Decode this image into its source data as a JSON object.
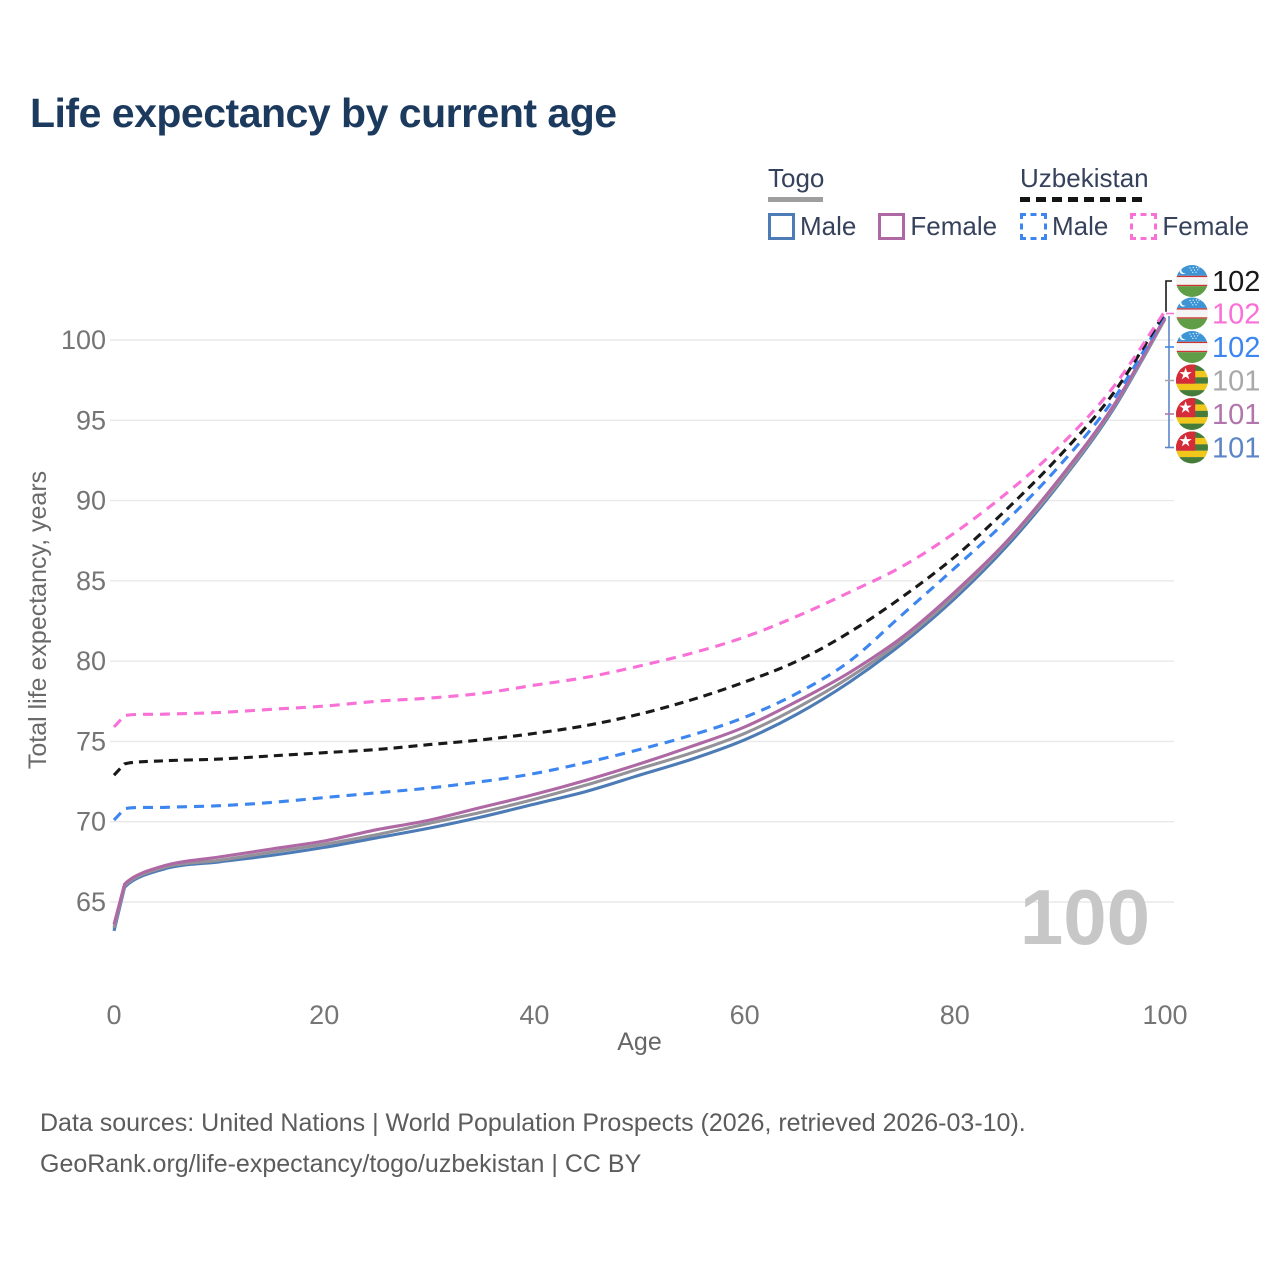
{
  "page": {
    "title": "Life expectancy by current age"
  },
  "legend": {
    "groups": [
      {
        "title": "Togo",
        "line_style": "solid",
        "underline_color": "#9e9e9e",
        "items": [
          {
            "label": "Male",
            "color": "#4d7bb5"
          },
          {
            "label": "Female",
            "color": "#ae68a4"
          }
        ]
      },
      {
        "title": "Uzbekistan",
        "line_style": "dashed",
        "underline_color": "#141414",
        "items": [
          {
            "label": "Male",
            "color": "#3d86f0"
          },
          {
            "label": "Female",
            "color": "#f970d7"
          }
        ]
      }
    ]
  },
  "chart_data": {
    "type": "line",
    "title": "Life expectancy by current age",
    "xlabel": "Age",
    "ylabel": "Total life expectancy, years",
    "x_ticks": [
      0,
      20,
      40,
      60,
      80,
      100
    ],
    "y_ticks": [
      65,
      70,
      75,
      80,
      85,
      90,
      95,
      100
    ],
    "xlim": [
      0,
      100
    ],
    "ylim": [
      63,
      103
    ],
    "grid": true,
    "legend_position": "top-right",
    "watermark": "100",
    "ages": [
      0,
      1,
      5,
      10,
      15,
      20,
      25,
      30,
      35,
      40,
      45,
      50,
      55,
      60,
      65,
      70,
      75,
      80,
      85,
      90,
      95,
      100
    ],
    "series": [
      {
        "id": "togo-male",
        "name": "Togo Male",
        "country": "Togo",
        "sex": "Male",
        "line": "solid",
        "color": "#4d7bb5",
        "values": [
          63.2,
          65.9,
          67.1,
          67.5,
          67.9,
          68.4,
          69.0,
          69.6,
          70.3,
          71.1,
          71.9,
          72.9,
          73.9,
          75.1,
          76.7,
          78.7,
          81.1,
          83.9,
          87.2,
          91.1,
          95.6,
          101.3
        ]
      },
      {
        "id": "togo-total",
        "name": "Togo Total",
        "country": "Togo",
        "sex": "Total",
        "line": "solid",
        "color": "#949298",
        "values": [
          63.4,
          66.0,
          67.2,
          67.6,
          68.1,
          68.6,
          69.2,
          69.9,
          70.6,
          71.4,
          72.3,
          73.3,
          74.3,
          75.5,
          77.1,
          79.0,
          81.3,
          84.1,
          87.4,
          91.2,
          95.7,
          101.3
        ]
      },
      {
        "id": "togo-female",
        "name": "Togo Female",
        "country": "Togo",
        "sex": "Female",
        "line": "solid",
        "color": "#ae68a4",
        "values": [
          63.6,
          66.1,
          67.3,
          67.8,
          68.3,
          68.8,
          69.5,
          70.1,
          70.9,
          71.7,
          72.6,
          73.6,
          74.7,
          75.9,
          77.5,
          79.3,
          81.5,
          84.3,
          87.5,
          91.4,
          95.8,
          101.4
        ]
      },
      {
        "id": "uzbekistan-male",
        "name": "Uzbekistan Male",
        "country": "Uzbekistan",
        "sex": "Male",
        "line": "dashed",
        "color": "#3d86f0",
        "values": [
          70.1,
          70.8,
          70.9,
          71.0,
          71.2,
          71.5,
          71.8,
          72.1,
          72.5,
          73.0,
          73.7,
          74.5,
          75.4,
          76.5,
          78.0,
          80.0,
          82.9,
          85.8,
          88.8,
          92.2,
          96.2,
          101.6
        ]
      },
      {
        "id": "uzbekistan-total",
        "name": "Uzbekistan Total",
        "country": "Uzbekistan",
        "sex": "Total",
        "line": "dashed",
        "color": "#191919",
        "values": [
          72.9,
          73.6,
          73.8,
          73.9,
          74.1,
          74.3,
          74.5,
          74.8,
          75.1,
          75.5,
          76.0,
          76.7,
          77.6,
          78.7,
          80.0,
          81.8,
          84.0,
          86.5,
          89.5,
          92.8,
          96.6,
          101.7
        ]
      },
      {
        "id": "uzbekistan-female",
        "name": "Uzbekistan Female",
        "country": "Uzbekistan",
        "sex": "Female",
        "line": "dashed",
        "color": "#f970d7",
        "values": [
          75.9,
          76.6,
          76.7,
          76.8,
          77.0,
          77.2,
          77.5,
          77.7,
          78.0,
          78.5,
          79.0,
          79.7,
          80.5,
          81.5,
          82.8,
          84.3,
          85.9,
          88.0,
          90.5,
          93.4,
          97.0,
          101.8
        ]
      }
    ],
    "end_labels": [
      {
        "value": "102",
        "flag": "uzbekistan",
        "color": "#191919"
      },
      {
        "value": "102",
        "flag": "uzbekistan",
        "color": "#f970d7"
      },
      {
        "value": "102",
        "flag": "uzbekistan",
        "color": "#3d86f0"
      },
      {
        "value": "101",
        "flag": "togo",
        "color": "#a9a9a9"
      },
      {
        "value": "101",
        "flag": "togo",
        "color": "#b176ab"
      },
      {
        "value": "101",
        "flag": "togo",
        "color": "#5c85c6"
      }
    ]
  },
  "footer": {
    "line1": "Data sources: United Nations | World Population Prospects (2026, retrieved 2026-03-10).",
    "line2": "GeoRank.org/life-expectancy/togo/uzbekistan | CC BY"
  }
}
